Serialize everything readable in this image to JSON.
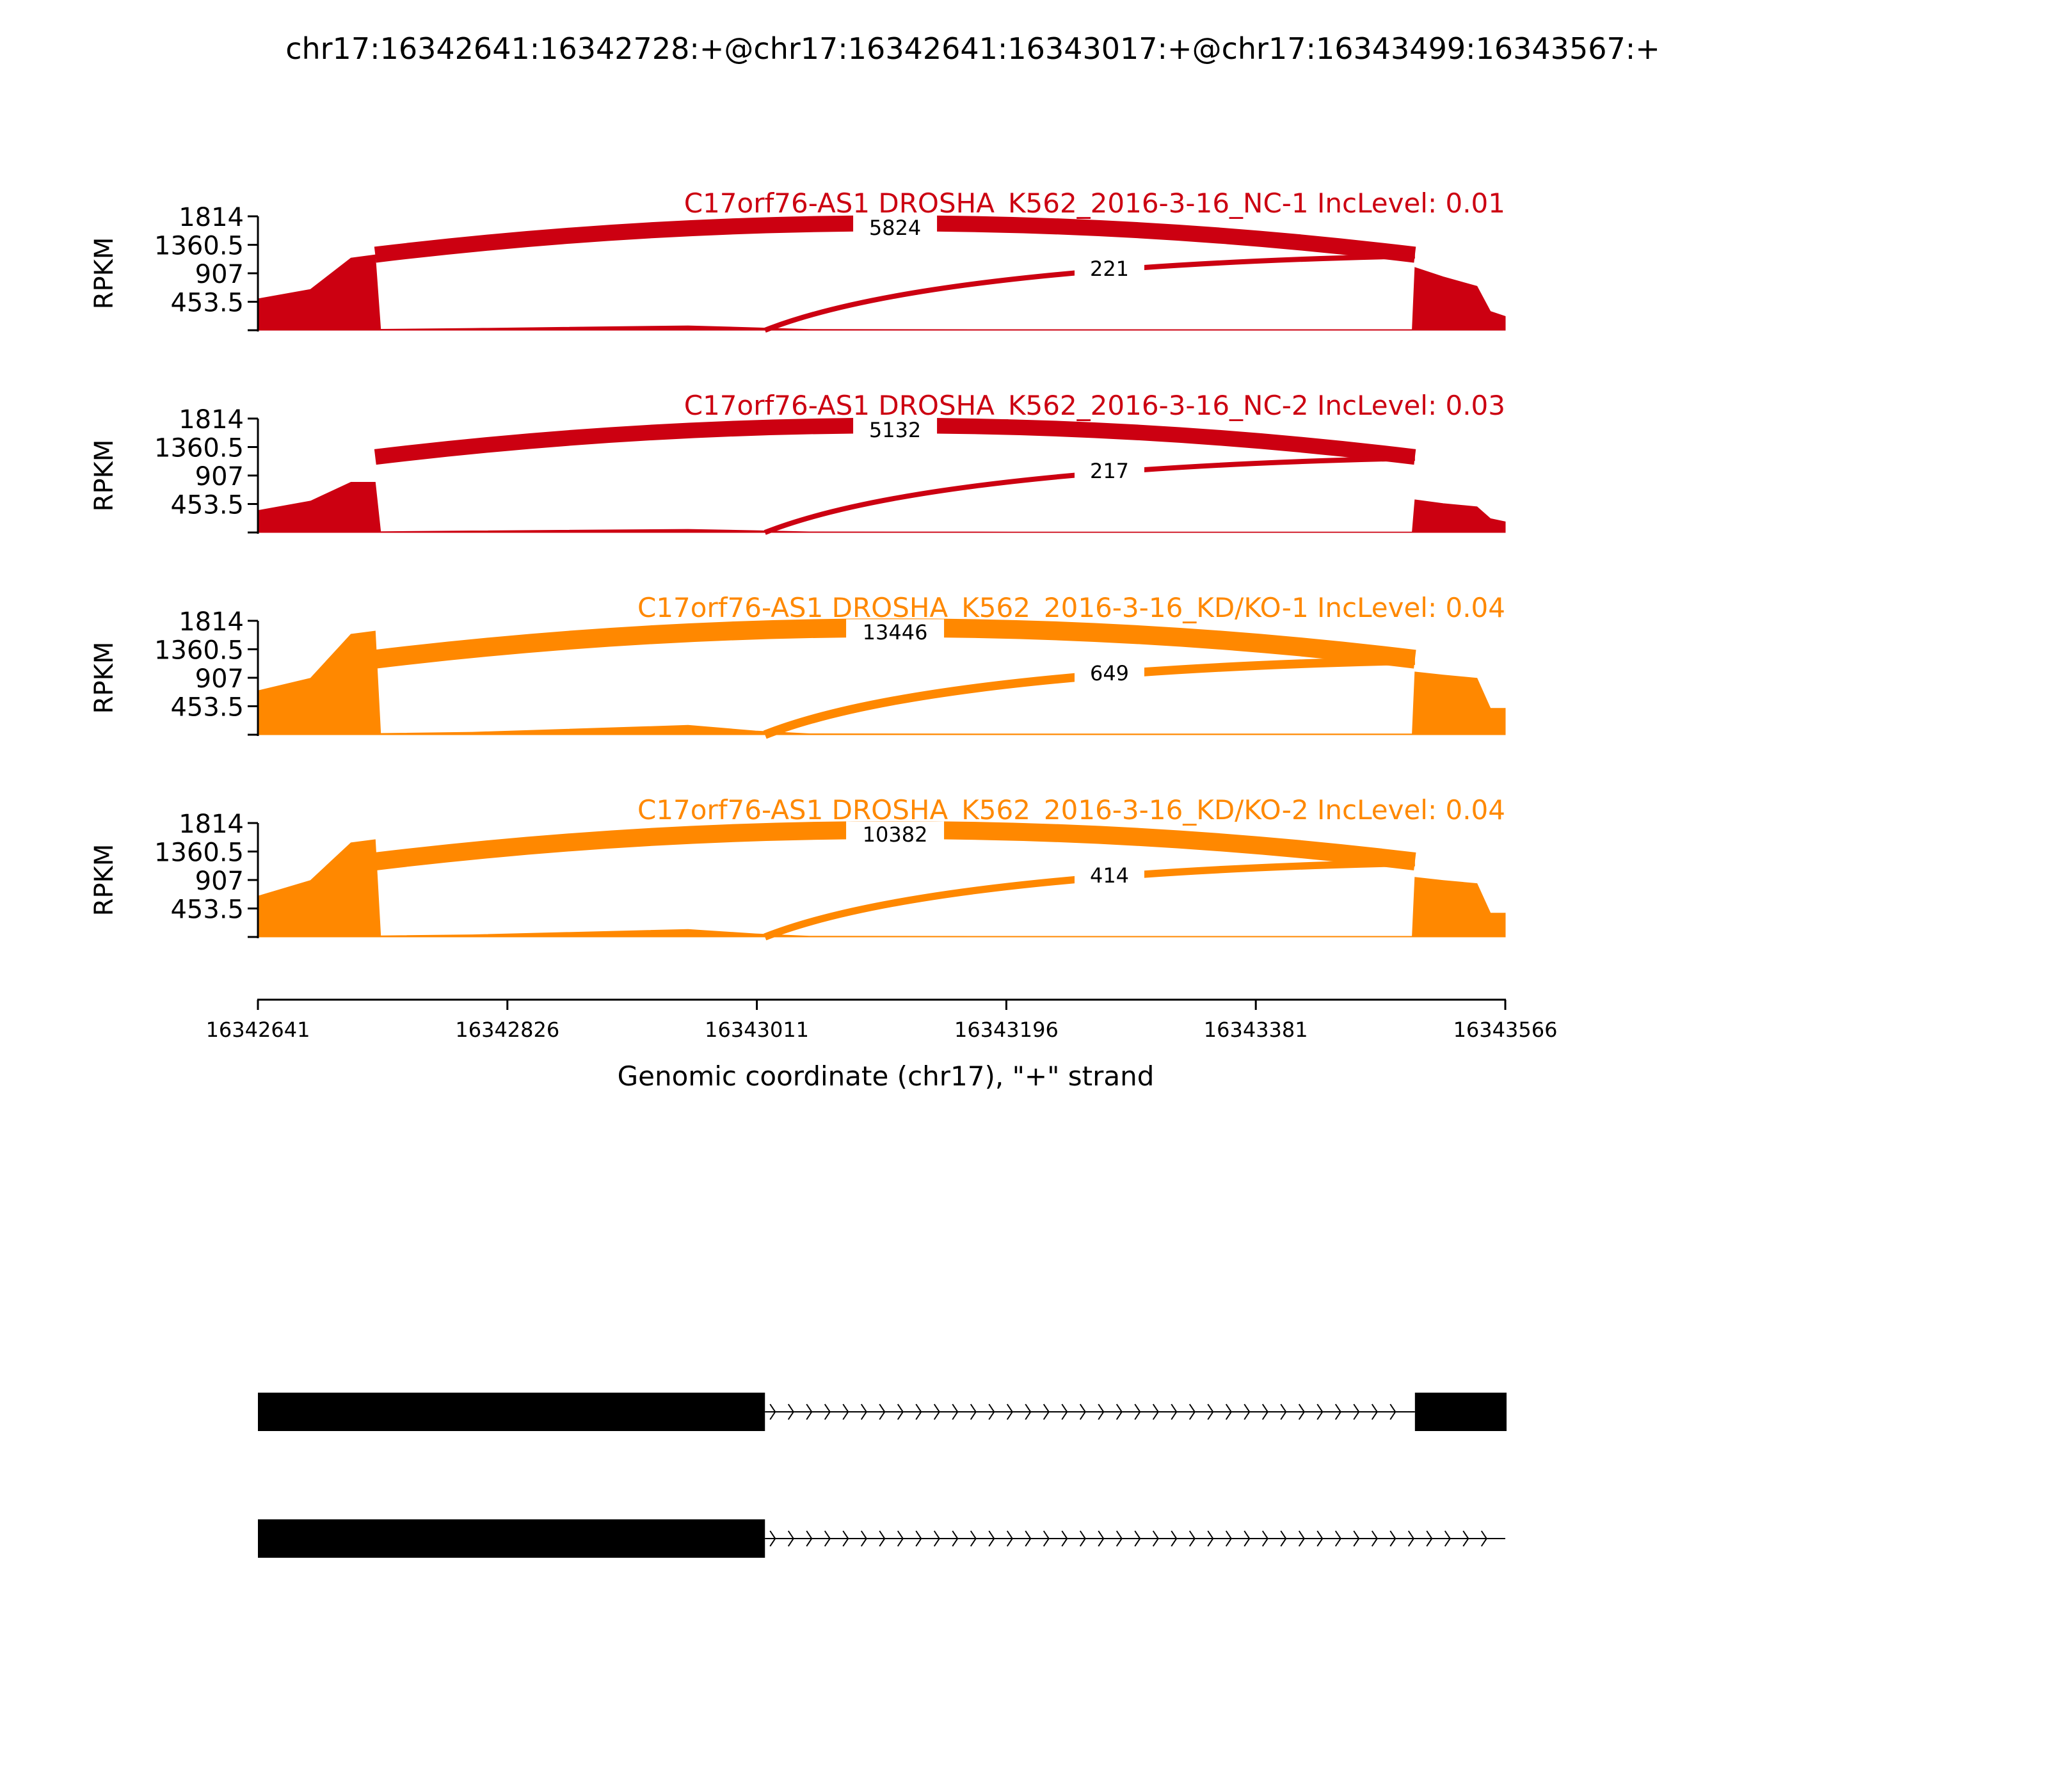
{
  "figure": {
    "title": "chr17:16342641:16342728:+@chr17:16342641:16343017:+@chr17:16343499:16343567:+",
    "ylabel": "RPKM",
    "xlabel": "Genomic coordinate (chr17), \"+\" strand"
  },
  "chart_data": {
    "type": "area",
    "title": "chr17:16342641:16342728:+@chr17:16342641:16343017:+@chr17:16343499:16343567:+",
    "xlabel": "Genomic coordinate (chr17), \"+\" strand",
    "ylabel": "RPKM",
    "xlim": [
      16342641,
      16343566
    ],
    "x_ticks": [
      16342641,
      16342826,
      16343011,
      16343196,
      16343381,
      16343566
    ],
    "ylim": [
      0,
      1814
    ],
    "y_ticks": [
      453.5,
      907,
      1360.5,
      1814
    ],
    "grid": false,
    "tracks": [
      {
        "label": "C17orf76-AS1 DROSHA_K562_2016-3-16_NC-1 IncLevel: 0.01",
        "color": "#CC0011",
        "coverage_x": [
          16342641,
          16342680,
          16342710,
          16342728,
          16342732,
          16342800,
          16342960,
          16343010,
          16343050,
          16343200,
          16343400,
          16343497,
          16343499,
          16343520,
          16343545,
          16343555,
          16343566
        ],
        "coverage_y": [
          500,
          650,
          1150,
          1200,
          15,
          30,
          70,
          40,
          12,
          10,
          10,
          10,
          1000,
          850,
          700,
          300,
          220
        ],
        "junctions": [
          {
            "from": 16342728,
            "to": 16343499,
            "count": "5824"
          },
          {
            "from": 16343017,
            "to": 16343499,
            "count": "221"
          }
        ]
      },
      {
        "label": "C17orf76-AS1 DROSHA_K562_2016-3-16_NC-2 IncLevel: 0.03",
        "color": "#CC0011",
        "coverage_x": [
          16342641,
          16342680,
          16342710,
          16342728,
          16342732,
          16342800,
          16342960,
          16343010,
          16343050,
          16343200,
          16343400,
          16343497,
          16343499,
          16343520,
          16343545,
          16343555,
          16343566
        ],
        "coverage_y": [
          350,
          500,
          800,
          800,
          12,
          25,
          50,
          30,
          10,
          8,
          8,
          8,
          520,
          460,
          410,
          220,
          170
        ],
        "junctions": [
          {
            "from": 16342728,
            "to": 16343499,
            "count": "5132"
          },
          {
            "from": 16343017,
            "to": 16343499,
            "count": "217"
          }
        ]
      },
      {
        "label": "C17orf76-AS1 DROSHA_K562_2016-3-16_KD/KO-1 IncLevel: 0.04",
        "color": "#FF8800",
        "coverage_x": [
          16342641,
          16342680,
          16342710,
          16342728,
          16342732,
          16342800,
          16342960,
          16343010,
          16343050,
          16343200,
          16343400,
          16343497,
          16343499,
          16343520,
          16343545,
          16343555,
          16343566
        ],
        "coverage_y": [
          700,
          900,
          1600,
          1650,
          20,
          40,
          150,
          60,
          15,
          12,
          12,
          12,
          1000,
          950,
          900,
          420,
          420
        ],
        "junctions": [
          {
            "from": 16342728,
            "to": 16343499,
            "count": "13446"
          },
          {
            "from": 16343017,
            "to": 16343499,
            "count": "649"
          }
        ]
      },
      {
        "label": "C17orf76-AS1 DROSHA_K562_2016-3-16_KD/KO-2 IncLevel: 0.04",
        "color": "#FF8800",
        "coverage_x": [
          16342641,
          16342680,
          16342710,
          16342728,
          16342732,
          16342800,
          16342960,
          16343010,
          16343050,
          16343200,
          16343400,
          16343497,
          16343499,
          16343520,
          16343545,
          16343555,
          16343566
        ],
        "coverage_y": [
          650,
          900,
          1500,
          1550,
          18,
          35,
          120,
          50,
          12,
          10,
          10,
          10,
          950,
          900,
          850,
          380,
          380
        ],
        "junctions": [
          {
            "from": 16342728,
            "to": 16343499,
            "count": "10382"
          },
          {
            "from": 16343017,
            "to": 16343499,
            "count": "414"
          }
        ]
      }
    ],
    "isoforms": [
      {
        "exons": [
          [
            16342641,
            16343017
          ],
          [
            16343499,
            16343567
          ]
        ],
        "intron": [
          16343017,
          16343499
        ]
      },
      {
        "exons": [
          [
            16342641,
            16343017
          ]
        ],
        "intron": [
          16343017,
          16343567
        ]
      }
    ]
  }
}
